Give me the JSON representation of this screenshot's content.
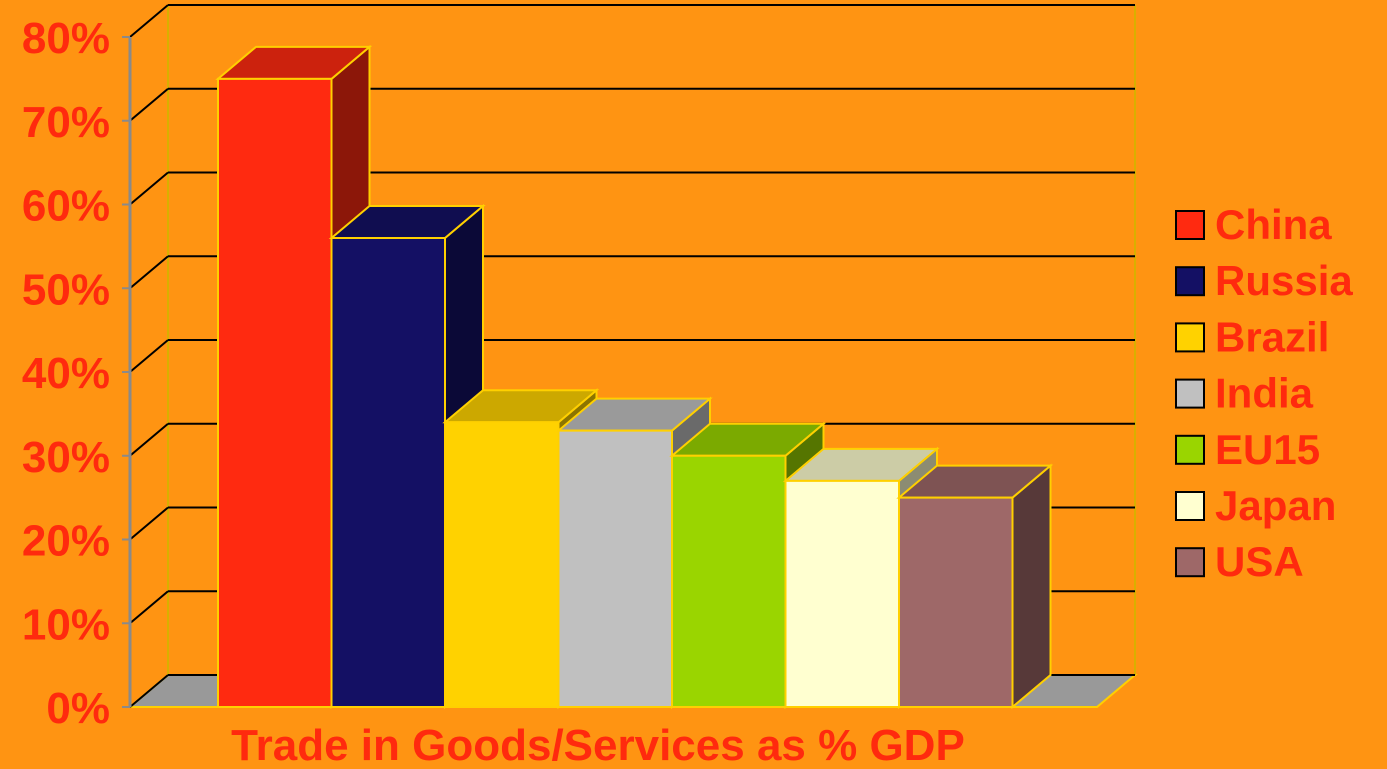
{
  "chart_data": {
    "type": "bar",
    "title": "",
    "xlabel": "Trade in Goods/Services as % GDP",
    "ylabel": "",
    "ylim": [
      0,
      80
    ],
    "y_ticks": [
      "0%",
      "10%",
      "20%",
      "30%",
      "40%",
      "50%",
      "60%",
      "70%",
      "80%"
    ],
    "grid": true,
    "legend_position": "right",
    "categories": [
      "China",
      "Russia",
      "Brazil",
      "India",
      "EU15",
      "Japan",
      "USA"
    ],
    "values": [
      75,
      56,
      34,
      33,
      30,
      27,
      25
    ],
    "colors": [
      "#FF2A10",
      "#141064",
      "#FFD200",
      "#C0C0C0",
      "#9AD500",
      "#FFFFD0",
      "#9E6868"
    ],
    "background": "#FF9412"
  }
}
